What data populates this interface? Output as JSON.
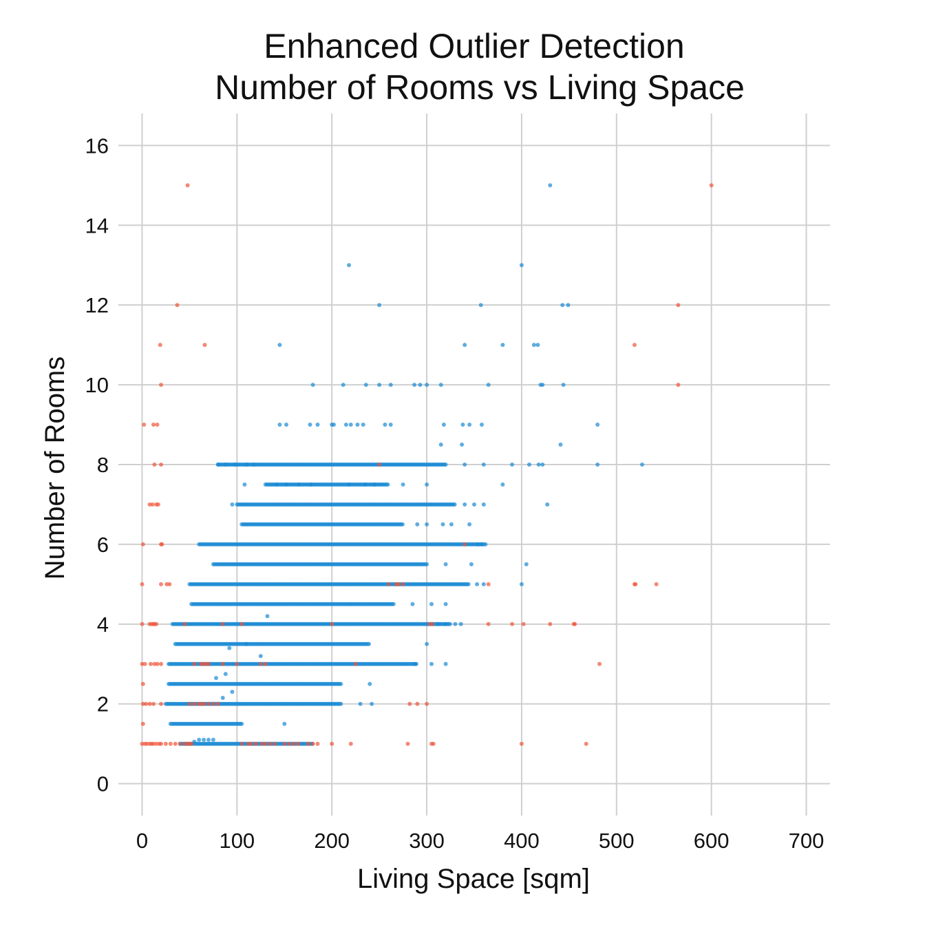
{
  "chart_data": {
    "type": "scatter",
    "title": [
      "Enhanced Outlier Detection",
      "Number of Rooms vs Living Space"
    ],
    "xlabel": "Living Space [sqm]",
    "ylabel": "Number of Rooms",
    "xlim": [
      -25,
      725
    ],
    "ylim": [
      -0.8,
      16.8
    ],
    "xticks": [
      0,
      100,
      200,
      300,
      400,
      500,
      600,
      700
    ],
    "yticks": [
      0,
      2,
      4,
      6,
      8,
      10,
      12,
      14,
      16
    ],
    "grid": true,
    "colors": {
      "inlier": "#1a8ad4",
      "outlier": "#f0553a"
    },
    "inlier_bands": [
      {
        "y": 1,
        "x0": 40,
        "x1": 180
      },
      {
        "y": 1.5,
        "x0": 30,
        "x1": 105
      },
      {
        "y": 2,
        "x0": 25,
        "x1": 210
      },
      {
        "y": 2.5,
        "x0": 28,
        "x1": 210
      },
      {
        "y": 3,
        "x0": 28,
        "x1": 290
      },
      {
        "y": 3.5,
        "x0": 35,
        "x1": 240
      },
      {
        "y": 4,
        "x0": 32,
        "x1": 325
      },
      {
        "y": 4.5,
        "x0": 52,
        "x1": 265
      },
      {
        "y": 5,
        "x0": 50,
        "x1": 345
      },
      {
        "y": 5.5,
        "x0": 75,
        "x1": 300
      },
      {
        "y": 6,
        "x0": 60,
        "x1": 360
      },
      {
        "y": 6.5,
        "x0": 105,
        "x1": 275
      },
      {
        "y": 7,
        "x0": 100,
        "x1": 330
      },
      {
        "y": 7.5,
        "x0": 130,
        "x1": 260
      },
      {
        "y": 8,
        "x0": 80,
        "x1": 320
      }
    ],
    "series": [
      {
        "role": "inlier",
        "points": [
          [
            218,
            13
          ],
          [
            400,
            13
          ],
          [
            430,
            15
          ],
          [
            250,
            12
          ],
          [
            357,
            12
          ],
          [
            443,
            12
          ],
          [
            449,
            12
          ],
          [
            145,
            11
          ],
          [
            340,
            11
          ],
          [
            380,
            11
          ],
          [
            413,
            11
          ],
          [
            417,
            11
          ],
          [
            180,
            10
          ],
          [
            212,
            10
          ],
          [
            236,
            10
          ],
          [
            250,
            10
          ],
          [
            262,
            10
          ],
          [
            287,
            10
          ],
          [
            293,
            10
          ],
          [
            300,
            10
          ],
          [
            315,
            10
          ],
          [
            365,
            10
          ],
          [
            420,
            10
          ],
          [
            422,
            10
          ],
          [
            444,
            10
          ],
          [
            145,
            9
          ],
          [
            152,
            9
          ],
          [
            177,
            9
          ],
          [
            185,
            9
          ],
          [
            200,
            9
          ],
          [
            202,
            9
          ],
          [
            215,
            9
          ],
          [
            220,
            9
          ],
          [
            227,
            9
          ],
          [
            233,
            9
          ],
          [
            256,
            9
          ],
          [
            262,
            9
          ],
          [
            318,
            9
          ],
          [
            338,
            9
          ],
          [
            345,
            9
          ],
          [
            358,
            9
          ],
          [
            480,
            9
          ],
          [
            315,
            8.5
          ],
          [
            337,
            8.5
          ],
          [
            441,
            8.5
          ],
          [
            80,
            8
          ],
          [
            88,
            8
          ],
          [
            98,
            8
          ],
          [
            110,
            8
          ],
          [
            118,
            8
          ],
          [
            340,
            8
          ],
          [
            360,
            8
          ],
          [
            390,
            8
          ],
          [
            408,
            8
          ],
          [
            418,
            8
          ],
          [
            422,
            8
          ],
          [
            480,
            8
          ],
          [
            527,
            8
          ],
          [
            108,
            7.5
          ],
          [
            142,
            7.5
          ],
          [
            152,
            7.5
          ],
          [
            165,
            7.5
          ],
          [
            178,
            7.5
          ],
          [
            218,
            7.5
          ],
          [
            235,
            7.5
          ],
          [
            245,
            7.5
          ],
          [
            275,
            7.5
          ],
          [
            300,
            7.5
          ],
          [
            380,
            7.5
          ],
          [
            95,
            7
          ],
          [
            340,
            7
          ],
          [
            350,
            7
          ],
          [
            360,
            7
          ],
          [
            427,
            7
          ],
          [
            290,
            6.5
          ],
          [
            300,
            6.5
          ],
          [
            317,
            6.5
          ],
          [
            326,
            6.5
          ],
          [
            345,
            6.5
          ],
          [
            354,
            6
          ],
          [
            358,
            6
          ],
          [
            362,
            6
          ],
          [
            320,
            5.5
          ],
          [
            347,
            5.5
          ],
          [
            405,
            5.5
          ],
          [
            353,
            5
          ],
          [
            360,
            5
          ],
          [
            400,
            5
          ],
          [
            285,
            4.5
          ],
          [
            305,
            4.5
          ],
          [
            320,
            4.5
          ],
          [
            312,
            4
          ],
          [
            320,
            4
          ],
          [
            330,
            4
          ],
          [
            336,
            4
          ],
          [
            300,
            3.5
          ],
          [
            288,
            3
          ],
          [
            305,
            3
          ],
          [
            320,
            3
          ],
          [
            240,
            2.5
          ],
          [
            230,
            2
          ],
          [
            242,
            2
          ],
          [
            60,
            1.1
          ],
          [
            65,
            1.1
          ],
          [
            70,
            1.1
          ],
          [
            75,
            1.1
          ],
          [
            55,
            1.05
          ],
          [
            150,
            1.5
          ],
          [
            132,
            4.2
          ],
          [
            110,
            3.5
          ],
          [
            125,
            3.2
          ],
          [
            88,
            2.75
          ],
          [
            92,
            3.4
          ],
          [
            95,
            2.3
          ],
          [
            78,
            2.65
          ],
          [
            85,
            2.15
          ]
        ]
      },
      {
        "role": "outlier",
        "points": [
          [
            48,
            15
          ],
          [
            600,
            15
          ],
          [
            37,
            12
          ],
          [
            565,
            12
          ],
          [
            19,
            11
          ],
          [
            66,
            11
          ],
          [
            519,
            11
          ],
          [
            20,
            10
          ],
          [
            565,
            10
          ],
          [
            2,
            9
          ],
          [
            12,
            9
          ],
          [
            16,
            9
          ],
          [
            13,
            8
          ],
          [
            20,
            8
          ],
          [
            8,
            7
          ],
          [
            11,
            7
          ],
          [
            15,
            7
          ],
          [
            17,
            7
          ],
          [
            1,
            6
          ],
          [
            20,
            6
          ],
          [
            21,
            6
          ],
          [
            0,
            5
          ],
          [
            20,
            5
          ],
          [
            26,
            5
          ],
          [
            29,
            5
          ],
          [
            260,
            5
          ],
          [
            268,
            5
          ],
          [
            270,
            5
          ],
          [
            275,
            5
          ],
          [
            365,
            5
          ],
          [
            519,
            5
          ],
          [
            520,
            5
          ],
          [
            542,
            5
          ],
          [
            0,
            4
          ],
          [
            8,
            4
          ],
          [
            10,
            4
          ],
          [
            12,
            4
          ],
          [
            13,
            4
          ],
          [
            15,
            4
          ],
          [
            45,
            4
          ],
          [
            85,
            4
          ],
          [
            105,
            4
          ],
          [
            200,
            4
          ],
          [
            303,
            4
          ],
          [
            306,
            4
          ],
          [
            365,
            4
          ],
          [
            390,
            4
          ],
          [
            402,
            4
          ],
          [
            430,
            4
          ],
          [
            455,
            4
          ],
          [
            456,
            4
          ],
          [
            340,
            6
          ],
          [
            250,
            8
          ],
          [
            0,
            3
          ],
          [
            3,
            3
          ],
          [
            9,
            3
          ],
          [
            13,
            3
          ],
          [
            16,
            3
          ],
          [
            20,
            3
          ],
          [
            55,
            3
          ],
          [
            62,
            3
          ],
          [
            65,
            3
          ],
          [
            68,
            3
          ],
          [
            70,
            3
          ],
          [
            85,
            3
          ],
          [
            100,
            3
          ],
          [
            125,
            3
          ],
          [
            130,
            3
          ],
          [
            225,
            3
          ],
          [
            482,
            3
          ],
          [
            1,
            2.5
          ],
          [
            1,
            2
          ],
          [
            4,
            2
          ],
          [
            8,
            2
          ],
          [
            12,
            2
          ],
          [
            20,
            2
          ],
          [
            50,
            2
          ],
          [
            55,
            2
          ],
          [
            60,
            2
          ],
          [
            62,
            2
          ],
          [
            65,
            2
          ],
          [
            70,
            2
          ],
          [
            75,
            2
          ],
          [
            80,
            2
          ],
          [
            282,
            2
          ],
          [
            290,
            2
          ],
          [
            300,
            2
          ],
          [
            1,
            1.5
          ],
          [
            0,
            1
          ],
          [
            3,
            1
          ],
          [
            5,
            1
          ],
          [
            8,
            1
          ],
          [
            10,
            1
          ],
          [
            12,
            1
          ],
          [
            15,
            1
          ],
          [
            18,
            1
          ],
          [
            20,
            1
          ],
          [
            25,
            1
          ],
          [
            30,
            1
          ],
          [
            35,
            1
          ],
          [
            40,
            1
          ],
          [
            45,
            1
          ],
          [
            48,
            1
          ],
          [
            50,
            1
          ],
          [
            52,
            1
          ],
          [
            105,
            1
          ],
          [
            112,
            1
          ],
          [
            115,
            1
          ],
          [
            120,
            1
          ],
          [
            126,
            1
          ],
          [
            130,
            1
          ],
          [
            135,
            1
          ],
          [
            140,
            1
          ],
          [
            150,
            1
          ],
          [
            155,
            1
          ],
          [
            160,
            1
          ],
          [
            165,
            1
          ],
          [
            175,
            1
          ],
          [
            180,
            1
          ],
          [
            185,
            1
          ],
          [
            200,
            1
          ],
          [
            220,
            1
          ],
          [
            280,
            1
          ],
          [
            305,
            1
          ],
          [
            307,
            1
          ],
          [
            400,
            1
          ],
          [
            468,
            1
          ]
        ]
      }
    ]
  }
}
